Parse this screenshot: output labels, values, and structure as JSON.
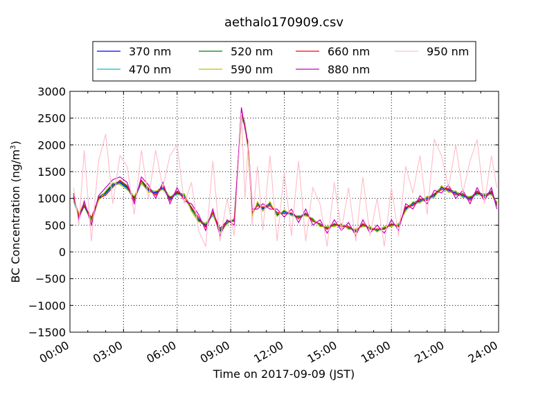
{
  "chart_data": {
    "type": "line",
    "title": "aethalo170909.csv",
    "xlabel": "Time on 2017-09-09 (JST)",
    "ylabel_main": "BC Concentration (ng/m",
    "ylabel_sup": "3",
    "ylabel_end": ")",
    "xlim": [
      0,
      24
    ],
    "ylim": [
      -1500,
      3000
    ],
    "x_ticks": [
      {
        "value": 0,
        "label": "00:00"
      },
      {
        "value": 3,
        "label": "03:00"
      },
      {
        "value": 6,
        "label": "06:00"
      },
      {
        "value": 9,
        "label": "09:00"
      },
      {
        "value": 12,
        "label": "12:00"
      },
      {
        "value": 15,
        "label": "15:00"
      },
      {
        "value": 18,
        "label": "18:00"
      },
      {
        "value": 21,
        "label": "21:00"
      },
      {
        "value": 24,
        "label": "24:00"
      }
    ],
    "y_ticks": [
      {
        "value": 3000,
        "label": "3000"
      },
      {
        "value": 2500,
        "label": "2500"
      },
      {
        "value": 2000,
        "label": "2000"
      },
      {
        "value": 1500,
        "label": "1500"
      },
      {
        "value": 1000,
        "label": "1000"
      },
      {
        "value": 500,
        "label": "500"
      },
      {
        "value": 0,
        "label": "0"
      },
      {
        "value": -500,
        "label": "−500"
      },
      {
        "value": -1000,
        "label": "−1000"
      },
      {
        "value": -1500,
        "label": "−1500"
      }
    ],
    "grid": true,
    "grid_style": "dotted",
    "legend": {
      "placement": "top, above plot",
      "columns": 4
    },
    "series": [
      {
        "name": "370 nm",
        "color": "#0000ff",
        "x": [
          0.2,
          0.5,
          0.8,
          1.2,
          1.6,
          2.0,
          2.4,
          2.8,
          3.2,
          3.6,
          4.0,
          4.4,
          4.8,
          5.2,
          5.6,
          6.0,
          6.4,
          6.8,
          7.2,
          7.6,
          8.0,
          8.4,
          8.8,
          9.2,
          9.6,
          9.8,
          10.0,
          10.2,
          10.5,
          10.8,
          11.2,
          11.6,
          12.0,
          12.4,
          12.8,
          13.2,
          13.6,
          14.0,
          14.4,
          14.8,
          15.2,
          15.6,
          16.0,
          16.4,
          16.8,
          17.2,
          17.6,
          18.0,
          18.4,
          18.8,
          19.2,
          19.6,
          20.0,
          20.4,
          20.8,
          21.2,
          21.6,
          22.0,
          22.4,
          22.8,
          23.2,
          23.6,
          23.9
        ],
        "y": [
          1000,
          700,
          900,
          600,
          1000,
          1100,
          1250,
          1300,
          1200,
          1000,
          1300,
          1150,
          1100,
          1200,
          1000,
          1100,
          1050,
          800,
          600,
          500,
          700,
          400,
          550,
          600,
          2600,
          2400,
          1900,
          700,
          900,
          800,
          900,
          700,
          750,
          700,
          650,
          700,
          600,
          500,
          450,
          500,
          500,
          450,
          400,
          500,
          450,
          400,
          450,
          500,
          500,
          800,
          900,
          950,
          1000,
          1050,
          1200,
          1150,
          1100,
          1050,
          1000,
          1100,
          1050,
          1100,
          900
        ]
      },
      {
        "name": "470 nm",
        "color": "#00bfbf",
        "x": [
          0.2,
          0.5,
          0.8,
          1.2,
          1.6,
          2.0,
          2.4,
          2.8,
          3.2,
          3.6,
          4.0,
          4.4,
          4.8,
          5.2,
          5.6,
          6.0,
          6.4,
          6.8,
          7.2,
          7.6,
          8.0,
          8.4,
          8.8,
          9.2,
          9.6,
          9.8,
          10.0,
          10.2,
          10.5,
          10.8,
          11.2,
          11.6,
          12.0,
          12.4,
          12.8,
          13.2,
          13.6,
          14.0,
          14.4,
          14.8,
          15.2,
          15.6,
          16.0,
          16.4,
          16.8,
          17.2,
          17.6,
          18.0,
          18.4,
          18.8,
          19.2,
          19.6,
          20.0,
          20.4,
          20.8,
          21.2,
          21.6,
          22.0,
          22.4,
          22.8,
          23.2,
          23.6,
          23.9
        ],
        "y": [
          950,
          680,
          880,
          620,
          980,
          1080,
          1230,
          1280,
          1180,
          980,
          1280,
          1130,
          1080,
          1180,
          980,
          1080,
          1030,
          780,
          620,
          520,
          680,
          420,
          560,
          610,
          2500,
          2350,
          1850,
          720,
          880,
          780,
          880,
          720,
          730,
          690,
          640,
          690,
          590,
          510,
          460,
          490,
          490,
          460,
          410,
          490,
          460,
          410,
          460,
          490,
          510,
          780,
          880,
          930,
          980,
          1030,
          1180,
          1130,
          1080,
          1030,
          980,
          1080,
          1030,
          1080,
          880
        ]
      },
      {
        "name": "520 nm",
        "color": "#008000",
        "x": [
          0.2,
          0.5,
          0.8,
          1.2,
          1.6,
          2.0,
          2.4,
          2.8,
          3.2,
          3.6,
          4.0,
          4.4,
          4.8,
          5.2,
          5.6,
          6.0,
          6.4,
          6.8,
          7.2,
          7.6,
          8.0,
          8.4,
          8.8,
          9.2,
          9.6,
          9.8,
          10.0,
          10.2,
          10.5,
          10.8,
          11.2,
          11.6,
          12.0,
          12.4,
          12.8,
          13.2,
          13.6,
          14.0,
          14.4,
          14.8,
          15.2,
          15.6,
          16.0,
          16.4,
          16.8,
          17.2,
          17.6,
          18.0,
          18.4,
          18.8,
          19.2,
          19.6,
          20.0,
          20.4,
          20.8,
          21.2,
          21.6,
          22.0,
          22.4,
          22.8,
          23.2,
          23.6,
          23.9
        ],
        "y": [
          1050,
          650,
          850,
          580,
          1020,
          1120,
          1270,
          1320,
          1220,
          1020,
          1320,
          1170,
          1120,
          1220,
          1020,
          1120,
          1070,
          820,
          580,
          480,
          720,
          380,
          540,
          590,
          2550,
          2380,
          1880,
          680,
          920,
          820,
          920,
          680,
          770,
          710,
          660,
          710,
          610,
          490,
          440,
          510,
          510,
          440,
          390,
          510,
          440,
          390,
          440,
          510,
          490,
          820,
          920,
          970,
          1020,
          1070,
          1220,
          1170,
          1120,
          1070,
          1020,
          1120,
          1070,
          1120,
          920
        ]
      },
      {
        "name": "590 nm",
        "color": "#bfbf00",
        "x": [
          0.2,
          0.5,
          0.8,
          1.2,
          1.6,
          2.0,
          2.4,
          2.8,
          3.2,
          3.6,
          4.0,
          4.4,
          4.8,
          5.2,
          5.6,
          6.0,
          6.4,
          6.8,
          7.2,
          7.6,
          8.0,
          8.4,
          8.8,
          9.2,
          9.6,
          9.8,
          10.0,
          10.2,
          10.5,
          10.8,
          11.2,
          11.6,
          12.0,
          12.4,
          12.8,
          13.2,
          13.6,
          14.0,
          14.4,
          14.8,
          15.2,
          15.6,
          16.0,
          16.4,
          16.8,
          17.2,
          17.6,
          18.0,
          18.4,
          18.8,
          19.2,
          19.6,
          20.0,
          20.4,
          20.8,
          21.2,
          21.6,
          22.0,
          22.4,
          22.8,
          23.2,
          23.6,
          23.9
        ],
        "y": [
          980,
          720,
          920,
          560,
          960,
          1140,
          1290,
          1260,
          1160,
          1040,
          1300,
          1110,
          1140,
          1160,
          1040,
          1060,
          1090,
          760,
          560,
          540,
          700,
          360,
          520,
          630,
          2480,
          2420,
          1820,
          660,
          940,
          760,
          940,
          660,
          790,
          670,
          680,
          670,
          630,
          470,
          480,
          470,
          530,
          420,
          430,
          470,
          480,
          370,
          480,
          470,
          530,
          760,
          940,
          910,
          1040,
          1010,
          1240,
          1110,
          1140,
          1010,
          1040,
          1060,
          1090,
          1060,
          940
        ]
      },
      {
        "name": "660 nm",
        "color": "#ff0000",
        "x": [
          0.2,
          0.5,
          0.8,
          1.2,
          1.6,
          2.0,
          2.4,
          2.8,
          3.2,
          3.6,
          4.0,
          4.4,
          4.8,
          5.2,
          5.6,
          6.0,
          6.4,
          6.8,
          7.2,
          7.6,
          8.0,
          8.4,
          8.8,
          9.2,
          9.6,
          9.8,
          10.0,
          10.2,
          10.5,
          10.8,
          11.2,
          11.6,
          12.0,
          12.4,
          12.8,
          13.2,
          13.6,
          14.0,
          14.4,
          14.8,
          15.2,
          15.6,
          16.0,
          16.4,
          16.8,
          17.2,
          17.6,
          18.0,
          18.4,
          18.8,
          19.2,
          19.6,
          20.0,
          20.4,
          20.8,
          21.2,
          21.6,
          22.0,
          22.4,
          22.8,
          23.2,
          23.6,
          23.9
        ],
        "y": [
          1020,
          670,
          870,
          640,
          1000,
          1060,
          1210,
          1340,
          1240,
          960,
          1340,
          1190,
          1060,
          1240,
          960,
          1140,
          1010,
          840,
          640,
          460,
          740,
          440,
          580,
          570,
          2620,
          2330,
          1920,
          740,
          860,
          840,
          860,
          740,
          710,
          730,
          620,
          730,
          570,
          530,
          420,
          530,
          470,
          480,
          370,
          530,
          420,
          430,
          420,
          530,
          470,
          840,
          860,
          990,
          960,
          1090,
          1160,
          1190,
          1060,
          1090,
          960,
          1140,
          1010,
          1140,
          860
        ]
      },
      {
        "name": "880 nm",
        "color": "#bf00bf",
        "x": [
          0.2,
          0.5,
          0.8,
          1.2,
          1.6,
          2.0,
          2.4,
          2.8,
          3.2,
          3.6,
          4.0,
          4.4,
          4.8,
          5.2,
          5.6,
          6.0,
          6.4,
          6.8,
          7.2,
          7.6,
          8.0,
          8.4,
          8.8,
          9.2,
          9.6,
          9.8,
          10.0,
          10.2,
          10.5,
          10.8,
          11.2,
          11.6,
          12.0,
          12.4,
          12.8,
          13.2,
          13.6,
          14.0,
          14.4,
          14.8,
          15.2,
          15.6,
          16.0,
          16.4,
          16.8,
          17.2,
          17.6,
          18.0,
          18.4,
          18.8,
          19.2,
          19.6,
          20.0,
          20.4,
          20.8,
          21.2,
          21.6,
          22.0,
          22.4,
          22.8,
          23.2,
          23.6,
          23.9
        ],
        "y": [
          1100,
          600,
          950,
          500,
          1050,
          1200,
          1350,
          1400,
          1300,
          900,
          1400,
          1250,
          1000,
          1300,
          900,
          1200,
          950,
          900,
          700,
          400,
          800,
          300,
          600,
          500,
          2700,
          2300,
          2000,
          800,
          800,
          900,
          800,
          800,
          650,
          800,
          550,
          800,
          500,
          600,
          350,
          600,
          400,
          550,
          300,
          600,
          350,
          500,
          350,
          600,
          400,
          900,
          800,
          1050,
          900,
          1150,
          1100,
          1250,
          1000,
          1150,
          900,
          1200,
          950,
          1200,
          800
        ]
      },
      {
        "name": "950 nm",
        "color": "#ffc0cb",
        "x": [
          0.2,
          0.5,
          0.8,
          1.2,
          1.6,
          2.0,
          2.4,
          2.8,
          3.2,
          3.6,
          4.0,
          4.4,
          4.8,
          5.2,
          5.6,
          6.0,
          6.4,
          6.8,
          7.2,
          7.6,
          8.0,
          8.4,
          8.8,
          9.2,
          9.6,
          9.8,
          10.0,
          10.2,
          10.5,
          10.8,
          11.2,
          11.6,
          12.0,
          12.4,
          12.8,
          13.2,
          13.6,
          14.0,
          14.4,
          14.8,
          15.2,
          15.6,
          16.0,
          16.4,
          16.8,
          17.2,
          17.6,
          18.0,
          18.4,
          18.8,
          19.2,
          19.6,
          20.0,
          20.4,
          20.8,
          21.2,
          21.6,
          22.0,
          22.4,
          22.8,
          23.2,
          23.6,
          23.9
        ],
        "y": [
          1200,
          500,
          1900,
          200,
          1700,
          2200,
          900,
          1800,
          1600,
          700,
          1900,
          1000,
          1900,
          1200,
          1800,
          2000,
          900,
          1300,
          400,
          100,
          1700,
          200,
          1000,
          300,
          2600,
          1000,
          2100,
          500,
          1600,
          400,
          1800,
          200,
          1500,
          300,
          1700,
          200,
          1200,
          900,
          100,
          1300,
          400,
          1200,
          200,
          1400,
          300,
          1000,
          100,
          1200,
          300,
          1600,
          1100,
          1800,
          700,
          2100,
          1800,
          1200,
          2000,
          1100,
          1700,
          2100,
          900,
          1800,
          1200
        ]
      }
    ]
  }
}
